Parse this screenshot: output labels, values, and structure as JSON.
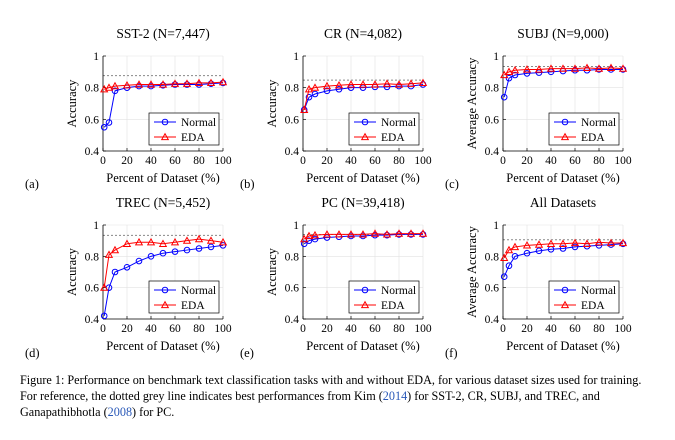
{
  "chart_data": [
    {
      "type": "line",
      "panel_label": "(a)",
      "title": "SST-2 (N=7,447)",
      "xlabel": "Percent of Dataset (%)",
      "ylabel": "Accuracy",
      "xlim": [
        0,
        100
      ],
      "ylim": [
        0.4,
        1.0
      ],
      "xticks": [
        "0",
        "20",
        "40",
        "60",
        "80",
        "100"
      ],
      "yticks": [
        "0.4",
        "0.6",
        "0.8",
        "1"
      ],
      "reference_line": 0.876,
      "legend_position": "bottom-right",
      "series": [
        {
          "name": "Normal",
          "color": "#0000ff",
          "marker": "circle",
          "x": [
            1,
            5,
            10,
            20,
            30,
            40,
            50,
            60,
            70,
            80,
            90,
            100
          ],
          "y": [
            0.55,
            0.58,
            0.78,
            0.8,
            0.81,
            0.81,
            0.815,
            0.82,
            0.82,
            0.82,
            0.825,
            0.83
          ]
        },
        {
          "name": "EDA",
          "color": "#ff0000",
          "marker": "triangle",
          "x": [
            1,
            5,
            10,
            20,
            30,
            40,
            50,
            60,
            70,
            80,
            90,
            100
          ],
          "y": [
            0.79,
            0.8,
            0.81,
            0.815,
            0.82,
            0.82,
            0.82,
            0.825,
            0.825,
            0.83,
            0.83,
            0.835
          ]
        }
      ]
    },
    {
      "type": "line",
      "panel_label": "(b)",
      "title": "CR (N=4,082)",
      "xlabel": "Percent of Dataset (%)",
      "ylabel": "Accuracy",
      "xlim": [
        0,
        100
      ],
      "ylim": [
        0.4,
        1.0
      ],
      "xticks": [
        "0",
        "20",
        "40",
        "60",
        "80",
        "100"
      ],
      "yticks": [
        "0.4",
        "0.6",
        "0.8",
        "1"
      ],
      "reference_line": 0.848,
      "legend_position": "bottom-right",
      "series": [
        {
          "name": "Normal",
          "color": "#0000ff",
          "marker": "circle",
          "x": [
            1,
            5,
            10,
            20,
            30,
            40,
            50,
            60,
            70,
            80,
            90,
            100
          ],
          "y": [
            0.66,
            0.74,
            0.76,
            0.78,
            0.79,
            0.8,
            0.8,
            0.805,
            0.805,
            0.81,
            0.81,
            0.82
          ]
        },
        {
          "name": "EDA",
          "color": "#ff0000",
          "marker": "triangle",
          "x": [
            1,
            5,
            10,
            20,
            30,
            40,
            50,
            60,
            70,
            80,
            90,
            100
          ],
          "y": [
            0.66,
            0.79,
            0.8,
            0.81,
            0.815,
            0.82,
            0.82,
            0.82,
            0.825,
            0.82,
            0.825,
            0.83
          ]
        }
      ]
    },
    {
      "type": "line",
      "panel_label": "(c)",
      "title": "SUBJ (N=9,000)",
      "xlabel": "Percent of Dataset (%)",
      "ylabel": "Average Accuracy",
      "xlim": [
        0,
        100
      ],
      "ylim": [
        0.4,
        1.0
      ],
      "xticks": [
        "0",
        "20",
        "40",
        "60",
        "80",
        "100"
      ],
      "yticks": [
        "0.4",
        "0.6",
        "0.8",
        "1"
      ],
      "reference_line": 0.934,
      "legend_position": "bottom-right",
      "series": [
        {
          "name": "Normal",
          "color": "#0000ff",
          "marker": "circle",
          "x": [
            1,
            5,
            10,
            20,
            30,
            40,
            50,
            60,
            70,
            80,
            90,
            100
          ],
          "y": [
            0.74,
            0.86,
            0.88,
            0.89,
            0.895,
            0.9,
            0.905,
            0.91,
            0.91,
            0.915,
            0.915,
            0.915
          ]
        },
        {
          "name": "EDA",
          "color": "#ff0000",
          "marker": "triangle",
          "x": [
            1,
            5,
            10,
            20,
            30,
            40,
            50,
            60,
            70,
            80,
            90,
            100
          ],
          "y": [
            0.88,
            0.9,
            0.91,
            0.915,
            0.915,
            0.92,
            0.92,
            0.92,
            0.925,
            0.92,
            0.925,
            0.92
          ]
        }
      ]
    },
    {
      "type": "line",
      "panel_label": "(d)",
      "title": "TREC (N=5,452)",
      "xlabel": "Percent of Dataset (%)",
      "ylabel": "Accuracy",
      "xlim": [
        0,
        100
      ],
      "ylim": [
        0.4,
        1.0
      ],
      "xticks": [
        "0",
        "20",
        "40",
        "60",
        "80",
        "100"
      ],
      "yticks": [
        "0.4",
        "0.6",
        "0.8",
        "1"
      ],
      "reference_line": 0.934,
      "legend_position": "bottom-right",
      "series": [
        {
          "name": "Normal",
          "color": "#0000ff",
          "marker": "circle",
          "x": [
            1,
            5,
            10,
            20,
            30,
            40,
            50,
            60,
            70,
            80,
            90,
            100
          ],
          "y": [
            0.42,
            0.6,
            0.7,
            0.73,
            0.77,
            0.8,
            0.82,
            0.83,
            0.84,
            0.85,
            0.86,
            0.87
          ]
        },
        {
          "name": "EDA",
          "color": "#ff0000",
          "marker": "triangle",
          "x": [
            1,
            5,
            10,
            20,
            30,
            40,
            50,
            60,
            70,
            80,
            90,
            100
          ],
          "y": [
            0.6,
            0.81,
            0.84,
            0.88,
            0.89,
            0.89,
            0.88,
            0.89,
            0.9,
            0.91,
            0.9,
            0.89
          ]
        }
      ]
    },
    {
      "type": "line",
      "panel_label": "(e)",
      "title": "PC (N=39,418)",
      "xlabel": "Percent of Dataset (%)",
      "ylabel": "Accuracy",
      "xlim": [
        0,
        100
      ],
      "ylim": [
        0.4,
        1.0
      ],
      "xticks": [
        "0",
        "20",
        "40",
        "60",
        "80",
        "100"
      ],
      "yticks": [
        "0.4",
        "0.6",
        "0.8",
        "1"
      ],
      "reference_line": 0.939,
      "legend_position": "bottom-right",
      "series": [
        {
          "name": "Normal",
          "color": "#0000ff",
          "marker": "circle",
          "x": [
            1,
            5,
            10,
            20,
            30,
            40,
            50,
            60,
            70,
            80,
            90,
            100
          ],
          "y": [
            0.88,
            0.9,
            0.91,
            0.92,
            0.925,
            0.93,
            0.93,
            0.935,
            0.935,
            0.94,
            0.94,
            0.94
          ]
        },
        {
          "name": "EDA",
          "color": "#ff0000",
          "marker": "triangle",
          "x": [
            1,
            5,
            10,
            20,
            30,
            40,
            50,
            60,
            70,
            80,
            90,
            100
          ],
          "y": [
            0.91,
            0.93,
            0.935,
            0.94,
            0.94,
            0.94,
            0.94,
            0.945,
            0.94,
            0.945,
            0.945,
            0.945
          ]
        }
      ]
    },
    {
      "type": "line",
      "panel_label": "(f)",
      "title": "All Datasets",
      "xlabel": "Percent of Dataset (%)",
      "ylabel": "Average Accuracy",
      "xlim": [
        0,
        100
      ],
      "ylim": [
        0.4,
        1.0
      ],
      "xticks": [
        "0",
        "20",
        "40",
        "60",
        "80",
        "100"
      ],
      "yticks": [
        "0.4",
        "0.6",
        "0.8",
        "1"
      ],
      "reference_line": 0.906,
      "legend_position": "bottom-right",
      "series": [
        {
          "name": "Normal",
          "color": "#0000ff",
          "marker": "circle",
          "x": [
            1,
            5,
            10,
            20,
            30,
            40,
            50,
            60,
            70,
            80,
            90,
            100
          ],
          "y": [
            0.67,
            0.74,
            0.8,
            0.82,
            0.835,
            0.845,
            0.85,
            0.86,
            0.865,
            0.87,
            0.875,
            0.88
          ]
        },
        {
          "name": "EDA",
          "color": "#ff0000",
          "marker": "triangle",
          "x": [
            1,
            5,
            10,
            20,
            30,
            40,
            50,
            60,
            70,
            80,
            90,
            100
          ],
          "y": [
            0.79,
            0.84,
            0.86,
            0.87,
            0.875,
            0.88,
            0.88,
            0.885,
            0.88,
            0.89,
            0.885,
            0.885
          ]
        }
      ]
    }
  ],
  "caption": {
    "before_ref1": "Figure 1: Performance on benchmark text classification tasks with and without EDA, for various dataset sizes used for training. For reference, the dotted grey line indicates best performances from Kim (",
    "ref1_year": "2014",
    "between_refs": ") for SST-2, CR, SUBJ, and TREC, and Ganapathibhotla (",
    "ref2_year": "2008",
    "after_ref2": ") for PC."
  }
}
